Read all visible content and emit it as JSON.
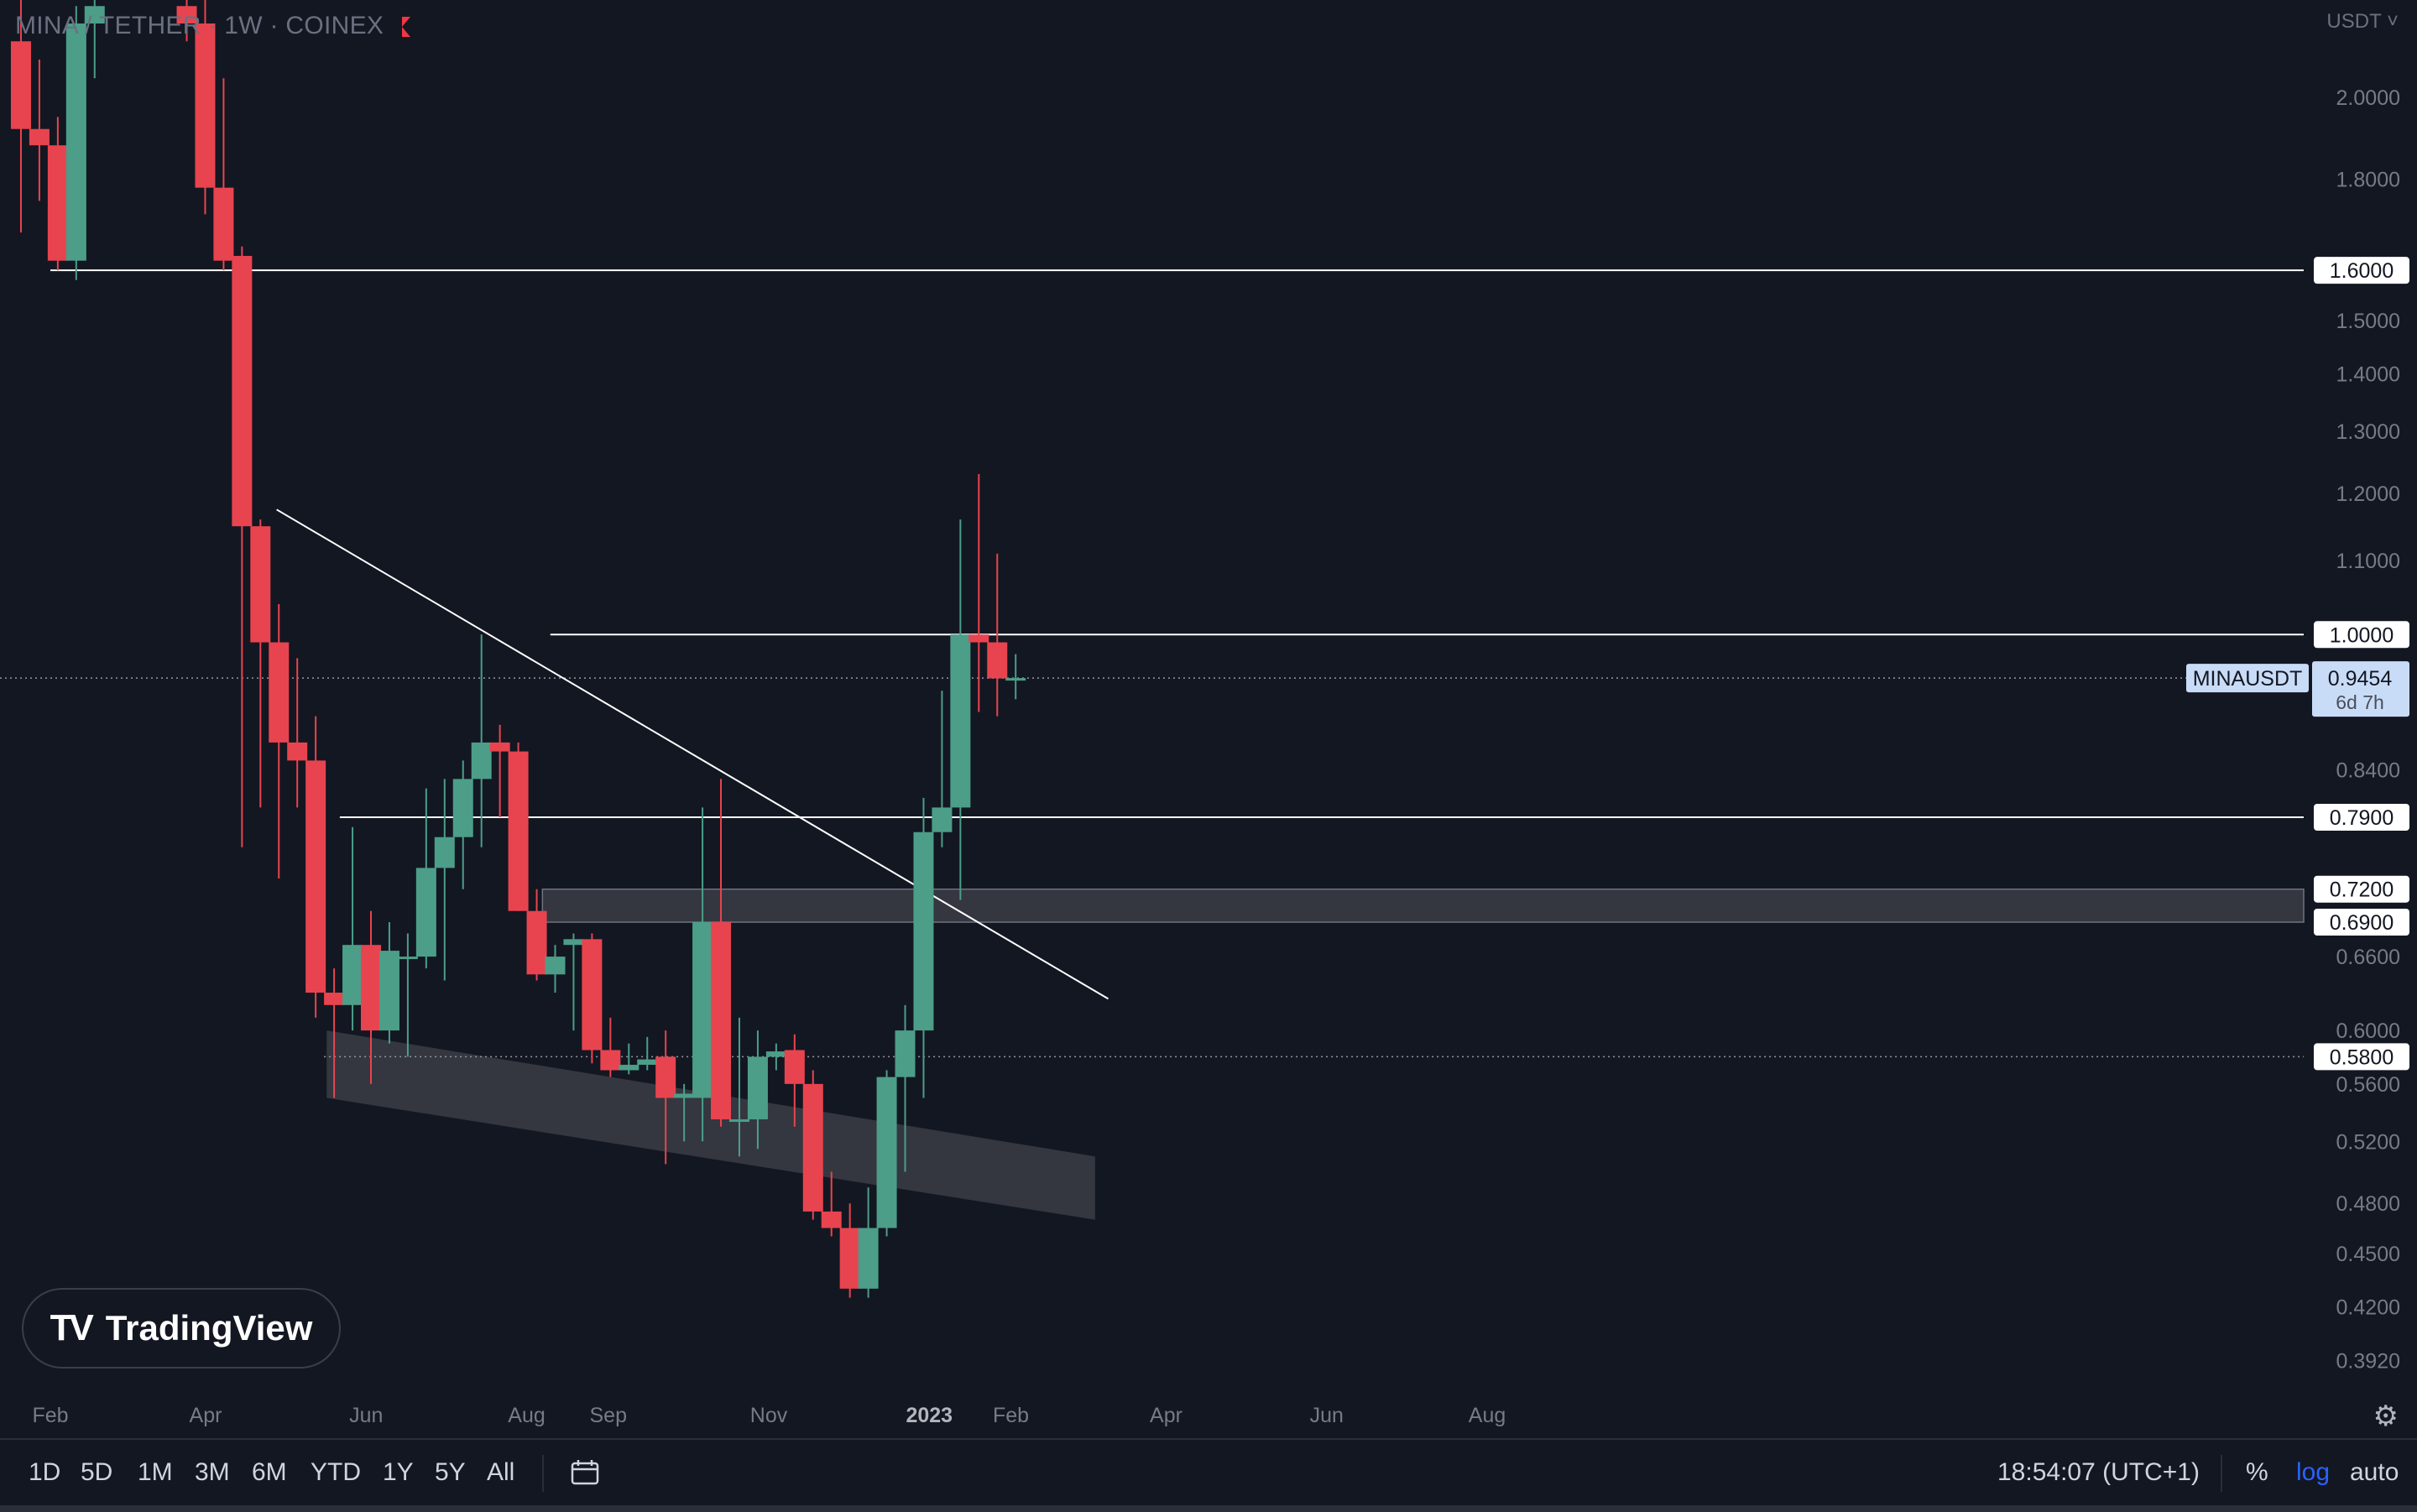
{
  "header": {
    "symbol_line": "MINA / TETHER · 1W · COINEX",
    "currency": "USDT"
  },
  "brand": {
    "name": "TradingView"
  },
  "toolbar": {
    "ranges": [
      "1D",
      "5D",
      "1M",
      "3M",
      "6M",
      "YTD",
      "1Y",
      "5Y",
      "All"
    ],
    "clock": "18:54:07 (UTC+1)",
    "percent": "%",
    "log": "log",
    "auto": "auto"
  },
  "colors": {
    "background": "#131722",
    "up": "#4c9e88",
    "down": "#e8444f",
    "line": "#ffffff",
    "zone": "#3b3d45",
    "axis_text": "#787b86",
    "last_price_badge": "#c9dcf7"
  },
  "chart_data": {
    "type": "candlestick",
    "symbol": "MINAUSDT",
    "interval": "1W",
    "scale": "log",
    "ylim": [
      0.38,
      2.2
    ],
    "x_ticks": [
      {
        "label": "Feb",
        "date": "2022-02-01"
      },
      {
        "label": "Apr",
        "date": "2022-04-01"
      },
      {
        "label": "Jun",
        "date": "2022-06-01"
      },
      {
        "label": "Aug",
        "date": "2022-08-01"
      },
      {
        "label": "Sep",
        "date": "2022-09-01"
      },
      {
        "label": "Nov",
        "date": "2022-11-01"
      },
      {
        "label": "2023",
        "date": "2023-01-01"
      },
      {
        "label": "Feb",
        "date": "2023-02-01"
      },
      {
        "label": "Apr",
        "date": "2023-04-01"
      },
      {
        "label": "Jun",
        "date": "2023-06-01"
      },
      {
        "label": "Aug",
        "date": "2023-08-01"
      }
    ],
    "y_ticks": [
      "2.0000",
      "1.8000",
      "1.5000",
      "1.4000",
      "1.3000",
      "1.2000",
      "1.1000",
      "0.8400",
      "0.6600",
      "0.6000",
      "0.5600",
      "0.5200",
      "0.4800",
      "0.4500",
      "0.4200",
      "0.3920"
    ],
    "candles": [
      {
        "date": "2022-01-17",
        "o": 2.15,
        "h": 2.3,
        "l": 1.68,
        "c": 1.92
      },
      {
        "date": "2022-01-24",
        "o": 1.92,
        "h": 2.1,
        "l": 1.75,
        "c": 1.88
      },
      {
        "date": "2022-01-31",
        "o": 1.88,
        "h": 1.95,
        "l": 1.6,
        "c": 1.62
      },
      {
        "date": "2022-02-07",
        "o": 1.62,
        "h": 2.25,
        "l": 1.58,
        "c": 2.2
      },
      {
        "date": "2022-02-14",
        "o": 2.2,
        "h": 2.3,
        "l": 2.05,
        "c": 2.25
      },
      {
        "date": "2022-03-21",
        "o": 2.25,
        "h": 2.3,
        "l": 2.15,
        "c": 2.2
      },
      {
        "date": "2022-03-28",
        "o": 2.2,
        "h": 2.3,
        "l": 1.72,
        "c": 1.78
      },
      {
        "date": "2022-04-04",
        "o": 1.78,
        "h": 2.05,
        "l": 1.6,
        "c": 1.62
      },
      {
        "date": "2022-04-11",
        "o": 1.63,
        "h": 1.65,
        "l": 0.76,
        "c": 1.15
      },
      {
        "date": "2022-04-18",
        "o": 1.15,
        "h": 1.16,
        "l": 0.8,
        "c": 0.99
      },
      {
        "date": "2022-04-25",
        "o": 0.99,
        "h": 1.04,
        "l": 0.73,
        "c": 0.87
      },
      {
        "date": "2022-05-02",
        "o": 0.87,
        "h": 0.97,
        "l": 0.8,
        "c": 0.85
      },
      {
        "date": "2022-05-09",
        "o": 0.85,
        "h": 0.9,
        "l": 0.61,
        "c": 0.63
      },
      {
        "date": "2022-05-16",
        "o": 0.63,
        "h": 0.65,
        "l": 0.55,
        "c": 0.62
      },
      {
        "date": "2022-05-23",
        "o": 0.62,
        "h": 0.78,
        "l": 0.6,
        "c": 0.67
      },
      {
        "date": "2022-05-30",
        "o": 0.67,
        "h": 0.7,
        "l": 0.56,
        "c": 0.6
      },
      {
        "date": "2022-06-06",
        "o": 0.6,
        "h": 0.69,
        "l": 0.59,
        "c": 0.665
      },
      {
        "date": "2022-06-13",
        "o": 0.66,
        "h": 0.68,
        "l": 0.58,
        "c": 0.66
      },
      {
        "date": "2022-06-20",
        "o": 0.66,
        "h": 0.82,
        "l": 0.65,
        "c": 0.74
      },
      {
        "date": "2022-06-27",
        "o": 0.74,
        "h": 0.83,
        "l": 0.64,
        "c": 0.77
      },
      {
        "date": "2022-07-04",
        "o": 0.77,
        "h": 0.85,
        "l": 0.72,
        "c": 0.83
      },
      {
        "date": "2022-07-11",
        "o": 0.83,
        "h": 1.0,
        "l": 0.76,
        "c": 0.87
      },
      {
        "date": "2022-07-18",
        "o": 0.87,
        "h": 0.89,
        "l": 0.79,
        "c": 0.86
      },
      {
        "date": "2022-07-25",
        "o": 0.86,
        "h": 0.87,
        "l": 0.7,
        "c": 0.7
      },
      {
        "date": "2022-08-01",
        "o": 0.7,
        "h": 0.72,
        "l": 0.64,
        "c": 0.645
      },
      {
        "date": "2022-08-08",
        "o": 0.645,
        "h": 0.67,
        "l": 0.63,
        "c": 0.66
      },
      {
        "date": "2022-08-15",
        "o": 0.67,
        "h": 0.68,
        "l": 0.6,
        "c": 0.675
      },
      {
        "date": "2022-08-22",
        "o": 0.675,
        "h": 0.68,
        "l": 0.575,
        "c": 0.585
      },
      {
        "date": "2022-08-29",
        "o": 0.585,
        "h": 0.61,
        "l": 0.565,
        "c": 0.57
      },
      {
        "date": "2022-09-05",
        "o": 0.57,
        "h": 0.59,
        "l": 0.567,
        "c": 0.574
      },
      {
        "date": "2022-09-12",
        "o": 0.574,
        "h": 0.595,
        "l": 0.57,
        "c": 0.578
      },
      {
        "date": "2022-09-19",
        "o": 0.58,
        "h": 0.6,
        "l": 0.505,
        "c": 0.55
      },
      {
        "date": "2022-09-26",
        "o": 0.55,
        "h": 0.56,
        "l": 0.52,
        "c": 0.553
      },
      {
        "date": "2022-10-03",
        "o": 0.55,
        "h": 0.8,
        "l": 0.52,
        "c": 0.69
      },
      {
        "date": "2022-10-10",
        "o": 0.69,
        "h": 0.83,
        "l": 0.53,
        "c": 0.535
      },
      {
        "date": "2022-10-17",
        "o": 0.535,
        "h": 0.61,
        "l": 0.51,
        "c": 0.535
      },
      {
        "date": "2022-10-24",
        "o": 0.535,
        "h": 0.6,
        "l": 0.515,
        "c": 0.58
      },
      {
        "date": "2022-10-31",
        "o": 0.58,
        "h": 0.59,
        "l": 0.57,
        "c": 0.584
      },
      {
        "date": "2022-11-07",
        "o": 0.585,
        "h": 0.597,
        "l": 0.53,
        "c": 0.56
      },
      {
        "date": "2022-11-14",
        "o": 0.56,
        "h": 0.57,
        "l": 0.47,
        "c": 0.475
      },
      {
        "date": "2022-11-21",
        "o": 0.475,
        "h": 0.5,
        "l": 0.46,
        "c": 0.465
      },
      {
        "date": "2022-11-28",
        "o": 0.465,
        "h": 0.48,
        "l": 0.425,
        "c": 0.43
      },
      {
        "date": "2022-12-05",
        "o": 0.43,
        "h": 0.49,
        "l": 0.425,
        "c": 0.465
      },
      {
        "date": "2022-12-12",
        "o": 0.465,
        "h": 0.57,
        "l": 0.46,
        "c": 0.565
      },
      {
        "date": "2022-12-19",
        "o": 0.565,
        "h": 0.62,
        "l": 0.5,
        "c": 0.6
      },
      {
        "date": "2022-12-26",
        "o": 0.6,
        "h": 0.81,
        "l": 0.55,
        "c": 0.775
      },
      {
        "date": "2023-01-02",
        "o": 0.775,
        "h": 0.93,
        "l": 0.76,
        "c": 0.8
      },
      {
        "date": "2023-01-09",
        "o": 0.8,
        "h": 1.16,
        "l": 0.71,
        "c": 1.0
      },
      {
        "date": "2023-01-16",
        "o": 1.0,
        "h": 1.23,
        "l": 0.905,
        "c": 0.99
      },
      {
        "date": "2023-01-23",
        "o": 0.99,
        "h": 1.11,
        "l": 0.9,
        "c": 0.945
      },
      {
        "date": "2023-01-30",
        "o": 0.945,
        "h": 0.975,
        "l": 0.92,
        "c": 0.9454
      }
    ],
    "horizontal_levels": [
      {
        "price": 1.6,
        "label": "1.6000",
        "from": "2022-02-01"
      },
      {
        "price": 1.0,
        "label": "1.0000",
        "from": "2022-08-10"
      },
      {
        "price": 0.79,
        "label": "0.7900",
        "from": "2022-05-22"
      },
      {
        "price": 0.58,
        "label": "0.5800",
        "style": "dotted",
        "from": "2022-05-16"
      }
    ],
    "zones": [
      {
        "type": "rect",
        "from": "2022-08-07",
        "top": 0.72,
        "bottom": 0.69,
        "top_label": "0.7200",
        "bottom_label": "0.6900"
      },
      {
        "type": "channel",
        "from": "2022-05-17",
        "to": "2023-03-05",
        "from_top": 0.6,
        "from_bottom": 0.55,
        "to_top": 0.51,
        "to_bottom": 0.47
      }
    ],
    "trendlines": [
      {
        "from": {
          "date": "2022-04-28",
          "price": 1.175
        },
        "to": {
          "date": "2023-03-10",
          "price": 0.625
        }
      }
    ],
    "last_price": {
      "symbol": "MINAUSDT",
      "price": "0.9454",
      "countdown": "6d 7h",
      "value": 0.9454
    }
  }
}
